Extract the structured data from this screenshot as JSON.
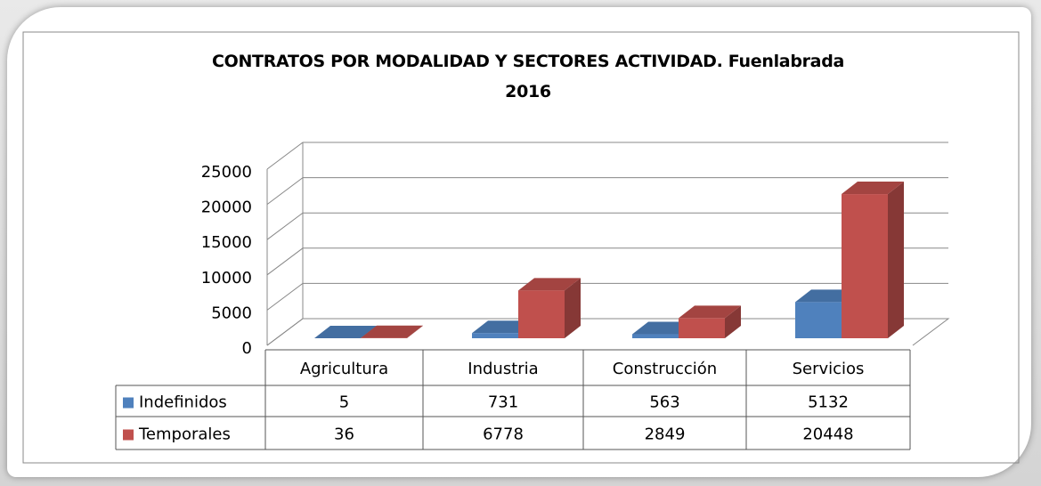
{
  "chart_data": {
    "type": "bar3d",
    "title": "CONTRATOS POR MODALIDAD Y SECTORES ACTIVIDAD. Fuenlabrada\n2016",
    "categories": [
      "Agricultura",
      "Industria",
      "Construcción",
      "Servicios"
    ],
    "series": [
      {
        "name": "Indefinidos",
        "color": "#4f81bd",
        "values": [
          5,
          731,
          563,
          5132
        ]
      },
      {
        "name": "Temporales",
        "color": "#c0504d",
        "values": [
          36,
          6778,
          2849,
          20448
        ]
      }
    ],
    "ylim": [
      0,
      25000
    ],
    "yticks": [
      0,
      5000,
      10000,
      15000,
      20000,
      25000
    ],
    "grid": true
  }
}
